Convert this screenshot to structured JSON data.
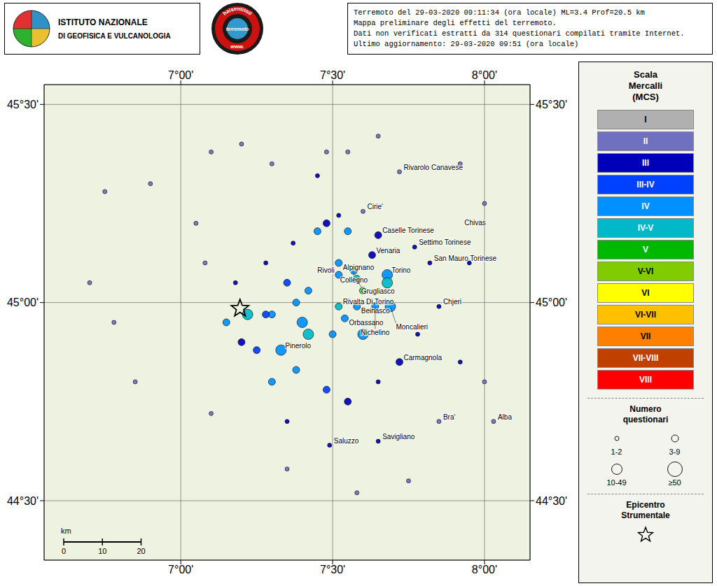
{
  "chart_data": {
    "type": "scatter",
    "title": "Terremoto del 29-03-2020 09:11:34 (ora locale) ML=3.4 Prof=20.5 km\nMappa preliminare degli effetti del terremoto.\nDati non verificati estratti da 314 questionari compilati tramite Internet.\nUltimo aggiornamento: 29-03-2020 09:51 (ora locale)",
    "xlim": [
      6.55,
      8.15
    ],
    "ylim": [
      44.35,
      45.55
    ],
    "xticks": [
      {
        "value": 7.0,
        "label": "7°00'"
      },
      {
        "value": 7.5,
        "label": "7°30'"
      },
      {
        "value": 8.0,
        "label": "8°00'"
      }
    ],
    "yticks": [
      {
        "value": 44.5,
        "label": "44°30'"
      },
      {
        "value": 45.0,
        "label": "45°00'"
      },
      {
        "value": 45.5,
        "label": "45°30'"
      }
    ],
    "grid": true,
    "legend_title": "Scala\nMercalli\n(MCS)",
    "mcs_classes": [
      {
        "name": "I",
        "color": "#b0b0b0"
      },
      {
        "name": "II",
        "color": "#7070c0"
      },
      {
        "name": "III",
        "color": "#0000bb"
      },
      {
        "name": "III-IV",
        "color": "#0040ff"
      },
      {
        "name": "IV",
        "color": "#0090ff"
      },
      {
        "name": "IV-V",
        "color": "#00b8c8"
      },
      {
        "name": "V",
        "color": "#00b800"
      },
      {
        "name": "V-VI",
        "color": "#80cc00"
      },
      {
        "name": "VI",
        "color": "#ffff00"
      },
      {
        "name": "VI-VII",
        "color": "#ffc000"
      },
      {
        "name": "VII",
        "color": "#ff8000"
      },
      {
        "name": "VII-VIII",
        "color": "#c04000"
      },
      {
        "name": "VIII",
        "color": "#ff0000"
      }
    ],
    "size_legend": {
      "title": "Numero\nquestionari",
      "bins": [
        {
          "label": "1-2",
          "max": 2
        },
        {
          "label": "3-9",
          "max": 9
        },
        {
          "label": "10-49",
          "max": 49
        },
        {
          "label": "≥50",
          "max": null
        }
      ]
    },
    "epicenter": {
      "label": "Epicentro\nStrumentale",
      "x": 7.195,
      "y": 44.985
    },
    "points": [
      {
        "x": 7.55,
        "y": 45.38,
        "mcs": "II",
        "n": 1
      },
      {
        "x": 7.48,
        "y": 45.38,
        "mcs": "II",
        "n": 1
      },
      {
        "x": 7.3,
        "y": 45.35,
        "mcs": "II",
        "n": 1
      },
      {
        "x": 7.72,
        "y": 45.33,
        "mcs": "II",
        "n": 1
      },
      {
        "x": 6.75,
        "y": 45.28,
        "mcs": "II",
        "n": 2
      },
      {
        "x": 7.6,
        "y": 45.23,
        "mcs": "II",
        "n": 1
      },
      {
        "x": 7.52,
        "y": 45.22,
        "mcs": "III",
        "n": 2
      },
      {
        "x": 7.48,
        "y": 45.2,
        "mcs": "III",
        "n": 3
      },
      {
        "x": 7.65,
        "y": 45.17,
        "mcs": "III",
        "n": 3
      },
      {
        "x": 7.37,
        "y": 45.15,
        "mcs": "III",
        "n": 2
      },
      {
        "x": 7.55,
        "y": 45.18,
        "mcs": "IV",
        "n": 4
      },
      {
        "x": 7.63,
        "y": 45.12,
        "mcs": "III",
        "n": 3
      },
      {
        "x": 7.77,
        "y": 45.14,
        "mcs": "III",
        "n": 2
      },
      {
        "x": 7.82,
        "y": 45.1,
        "mcs": "III",
        "n": 2
      },
      {
        "x": 7.52,
        "y": 45.1,
        "mcs": "IV",
        "n": 4
      },
      {
        "x": 7.57,
        "y": 45.08,
        "mcs": "IV",
        "n": 6
      },
      {
        "x": 7.58,
        "y": 45.06,
        "mcs": "IV-V",
        "n": 5
      },
      {
        "x": 7.52,
        "y": 45.07,
        "mcs": "IV",
        "n": 5
      },
      {
        "x": 7.68,
        "y": 45.07,
        "mcs": "IV",
        "n": 20
      },
      {
        "x": 7.52,
        "y": 44.99,
        "mcs": "IV-V",
        "n": 6
      },
      {
        "x": 7.58,
        "y": 44.99,
        "mcs": "IV",
        "n": 5
      },
      {
        "x": 7.54,
        "y": 44.96,
        "mcs": "IV",
        "n": 8
      },
      {
        "x": 7.64,
        "y": 44.99,
        "mcs": "IV",
        "n": 6
      },
      {
        "x": 7.69,
        "y": 44.99,
        "mcs": "IV",
        "n": 15
      },
      {
        "x": 7.85,
        "y": 44.99,
        "mcs": "III",
        "n": 2
      },
      {
        "x": 7.33,
        "y": 44.88,
        "mcs": "IV",
        "n": 15
      },
      {
        "x": 7.25,
        "y": 44.88,
        "mcs": "III-IV",
        "n": 4
      },
      {
        "x": 7.2,
        "y": 44.9,
        "mcs": "III",
        "n": 3
      },
      {
        "x": 7.15,
        "y": 44.95,
        "mcs": "IV",
        "n": 5
      },
      {
        "x": 7.22,
        "y": 44.97,
        "mcs": "IV-V",
        "n": 15
      },
      {
        "x": 7.3,
        "y": 44.97,
        "mcs": "IV",
        "n": 8
      },
      {
        "x": 7.4,
        "y": 44.95,
        "mcs": "IV",
        "n": 10
      },
      {
        "x": 7.42,
        "y": 44.92,
        "mcs": "IV-V",
        "n": 12
      },
      {
        "x": 7.5,
        "y": 44.92,
        "mcs": "IV",
        "n": 8
      },
      {
        "x": 7.6,
        "y": 44.92,
        "mcs": "IV",
        "n": 10
      },
      {
        "x": 7.72,
        "y": 44.85,
        "mcs": "III",
        "n": 3
      },
      {
        "x": 7.38,
        "y": 44.83,
        "mcs": "IV",
        "n": 8
      },
      {
        "x": 7.3,
        "y": 44.8,
        "mcs": "IV",
        "n": 7
      },
      {
        "x": 7.48,
        "y": 44.78,
        "mcs": "III-IV",
        "n": 4
      },
      {
        "x": 7.55,
        "y": 44.75,
        "mcs": "III",
        "n": 3
      },
      {
        "x": 7.49,
        "y": 44.64,
        "mcs": "III",
        "n": 2
      },
      {
        "x": 7.65,
        "y": 44.65,
        "mcs": "III",
        "n": 2
      },
      {
        "x": 7.85,
        "y": 44.7,
        "mcs": "II",
        "n": 1
      },
      {
        "x": 8.03,
        "y": 44.7,
        "mcs": "II",
        "n": 1
      },
      {
        "x": 7.65,
        "y": 45.42,
        "mcs": "II",
        "n": 1
      },
      {
        "x": 7.2,
        "y": 45.4,
        "mcs": "II",
        "n": 1
      },
      {
        "x": 7.1,
        "y": 45.38,
        "mcs": "II",
        "n": 1
      },
      {
        "x": 6.9,
        "y": 45.3,
        "mcs": "II",
        "n": 1
      },
      {
        "x": 7.75,
        "y": 44.55,
        "mcs": "II",
        "n": 1
      },
      {
        "x": 7.58,
        "y": 44.52,
        "mcs": "II",
        "n": 1
      },
      {
        "x": 7.35,
        "y": 44.58,
        "mcs": "II",
        "n": 1
      },
      {
        "x": 7.35,
        "y": 44.7,
        "mcs": "III",
        "n": 2
      },
      {
        "x": 7.1,
        "y": 44.72,
        "mcs": "II",
        "n": 1
      },
      {
        "x": 6.85,
        "y": 44.8,
        "mcs": "II",
        "n": 1
      },
      {
        "x": 6.78,
        "y": 44.95,
        "mcs": "II",
        "n": 1
      },
      {
        "x": 6.7,
        "y": 45.05,
        "mcs": "II",
        "n": 1
      },
      {
        "x": 7.92,
        "y": 45.35,
        "mcs": "II",
        "n": 1
      },
      {
        "x": 8.0,
        "y": 45.25,
        "mcs": "II",
        "n": 1
      },
      {
        "x": 7.95,
        "y": 45.1,
        "mcs": "III",
        "n": 2
      },
      {
        "x": 7.92,
        "y": 44.85,
        "mcs": "III",
        "n": 2
      },
      {
        "x": 8.0,
        "y": 44.8,
        "mcs": "II",
        "n": 1
      },
      {
        "x": 7.45,
        "y": 45.32,
        "mcs": "III",
        "n": 2
      },
      {
        "x": 7.28,
        "y": 45.1,
        "mcs": "III",
        "n": 2
      },
      {
        "x": 7.35,
        "y": 45.05,
        "mcs": "III-IV",
        "n": 3
      },
      {
        "x": 7.42,
        "y": 45.03,
        "mcs": "IV",
        "n": 4
      },
      {
        "x": 7.65,
        "y": 44.8,
        "mcs": "III",
        "n": 2
      },
      {
        "x": 7.78,
        "y": 44.92,
        "mcs": "III",
        "n": 2
      },
      {
        "x": 7.45,
        "y": 45.18,
        "mcs": "IV",
        "n": 4
      },
      {
        "x": 7.6,
        "y": 45.03,
        "mcs": "V",
        "n": 8
      },
      {
        "x": 7.68,
        "y": 45.05,
        "mcs": "IV-V",
        "n": 10
      },
      {
        "x": 7.38,
        "y": 45.0,
        "mcs": "IV",
        "n": 6
      },
      {
        "x": 7.28,
        "y": 44.97,
        "mcs": "III-IV",
        "n": 4
      },
      {
        "x": 7.18,
        "y": 45.05,
        "mcs": "III",
        "n": 2
      },
      {
        "x": 7.08,
        "y": 45.1,
        "mcs": "II",
        "n": 1
      },
      {
        "x": 7.05,
        "y": 45.2,
        "mcs": "II",
        "n": 1
      }
    ],
    "cities": [
      {
        "name": "Rivarolo Canavese",
        "x": 7.72,
        "y": 45.33
      },
      {
        "name": "Cirie'",
        "x": 7.6,
        "y": 45.23
      },
      {
        "name": "Caselle Torinese",
        "x": 7.65,
        "y": 45.17
      },
      {
        "name": "Chivas",
        "x": 7.92,
        "y": 45.19
      },
      {
        "name": "Venaria",
        "x": 7.63,
        "y": 45.12
      },
      {
        "name": "Settimo Torinese",
        "x": 7.77,
        "y": 45.14
      },
      {
        "name": "San Mauro Torinese",
        "x": 7.82,
        "y": 45.1
      },
      {
        "name": "Alpignano",
        "x": 7.52,
        "y": 45.1
      },
      {
        "name": "Collegno",
        "x": 7.57,
        "y": 45.08
      },
      {
        "name": "Grugliasco",
        "x": 7.58,
        "y": 45.06
      },
      {
        "name": "Rivoli",
        "x": 7.52,
        "y": 45.07
      },
      {
        "name": "Torino",
        "x": 7.68,
        "y": 45.07
      },
      {
        "name": "Rivalta Di Torino",
        "x": 7.52,
        "y": 44.99
      },
      {
        "name": "Beinasco",
        "x": 7.58,
        "y": 44.99
      },
      {
        "name": "Orbassano",
        "x": 7.54,
        "y": 44.96
      },
      {
        "name": "Nichelino",
        "x": 7.64,
        "y": 44.99
      },
      {
        "name": "Moncalieri",
        "x": 7.69,
        "y": 44.99
      },
      {
        "name": "Chjeri",
        "x": 7.85,
        "y": 44.99
      },
      {
        "name": "Pinerolo",
        "x": 7.33,
        "y": 44.88
      },
      {
        "name": "Carmagnola",
        "x": 7.72,
        "y": 44.85
      },
      {
        "name": "Bra'",
        "x": 7.85,
        "y": 44.7
      },
      {
        "name": "Saluzzo",
        "x": 7.49,
        "y": 44.64
      },
      {
        "name": "Savigliano",
        "x": 7.65,
        "y": 44.65
      },
      {
        "name": "Alba",
        "x": 8.03,
        "y": 44.7
      }
    ],
    "scale_bar": {
      "unit": "km",
      "ticks": [
        0,
        10,
        20
      ],
      "km_per_degree": 78.5
    },
    "logos": {
      "institute": [
        "ISTITUTO NAZIONALE",
        "DI GEOFISICA E VULCANOLOGIA"
      ],
      "site": {
        "top": "haisentitoil",
        "center": "terremoto",
        "bottom": "www."
      }
    }
  }
}
